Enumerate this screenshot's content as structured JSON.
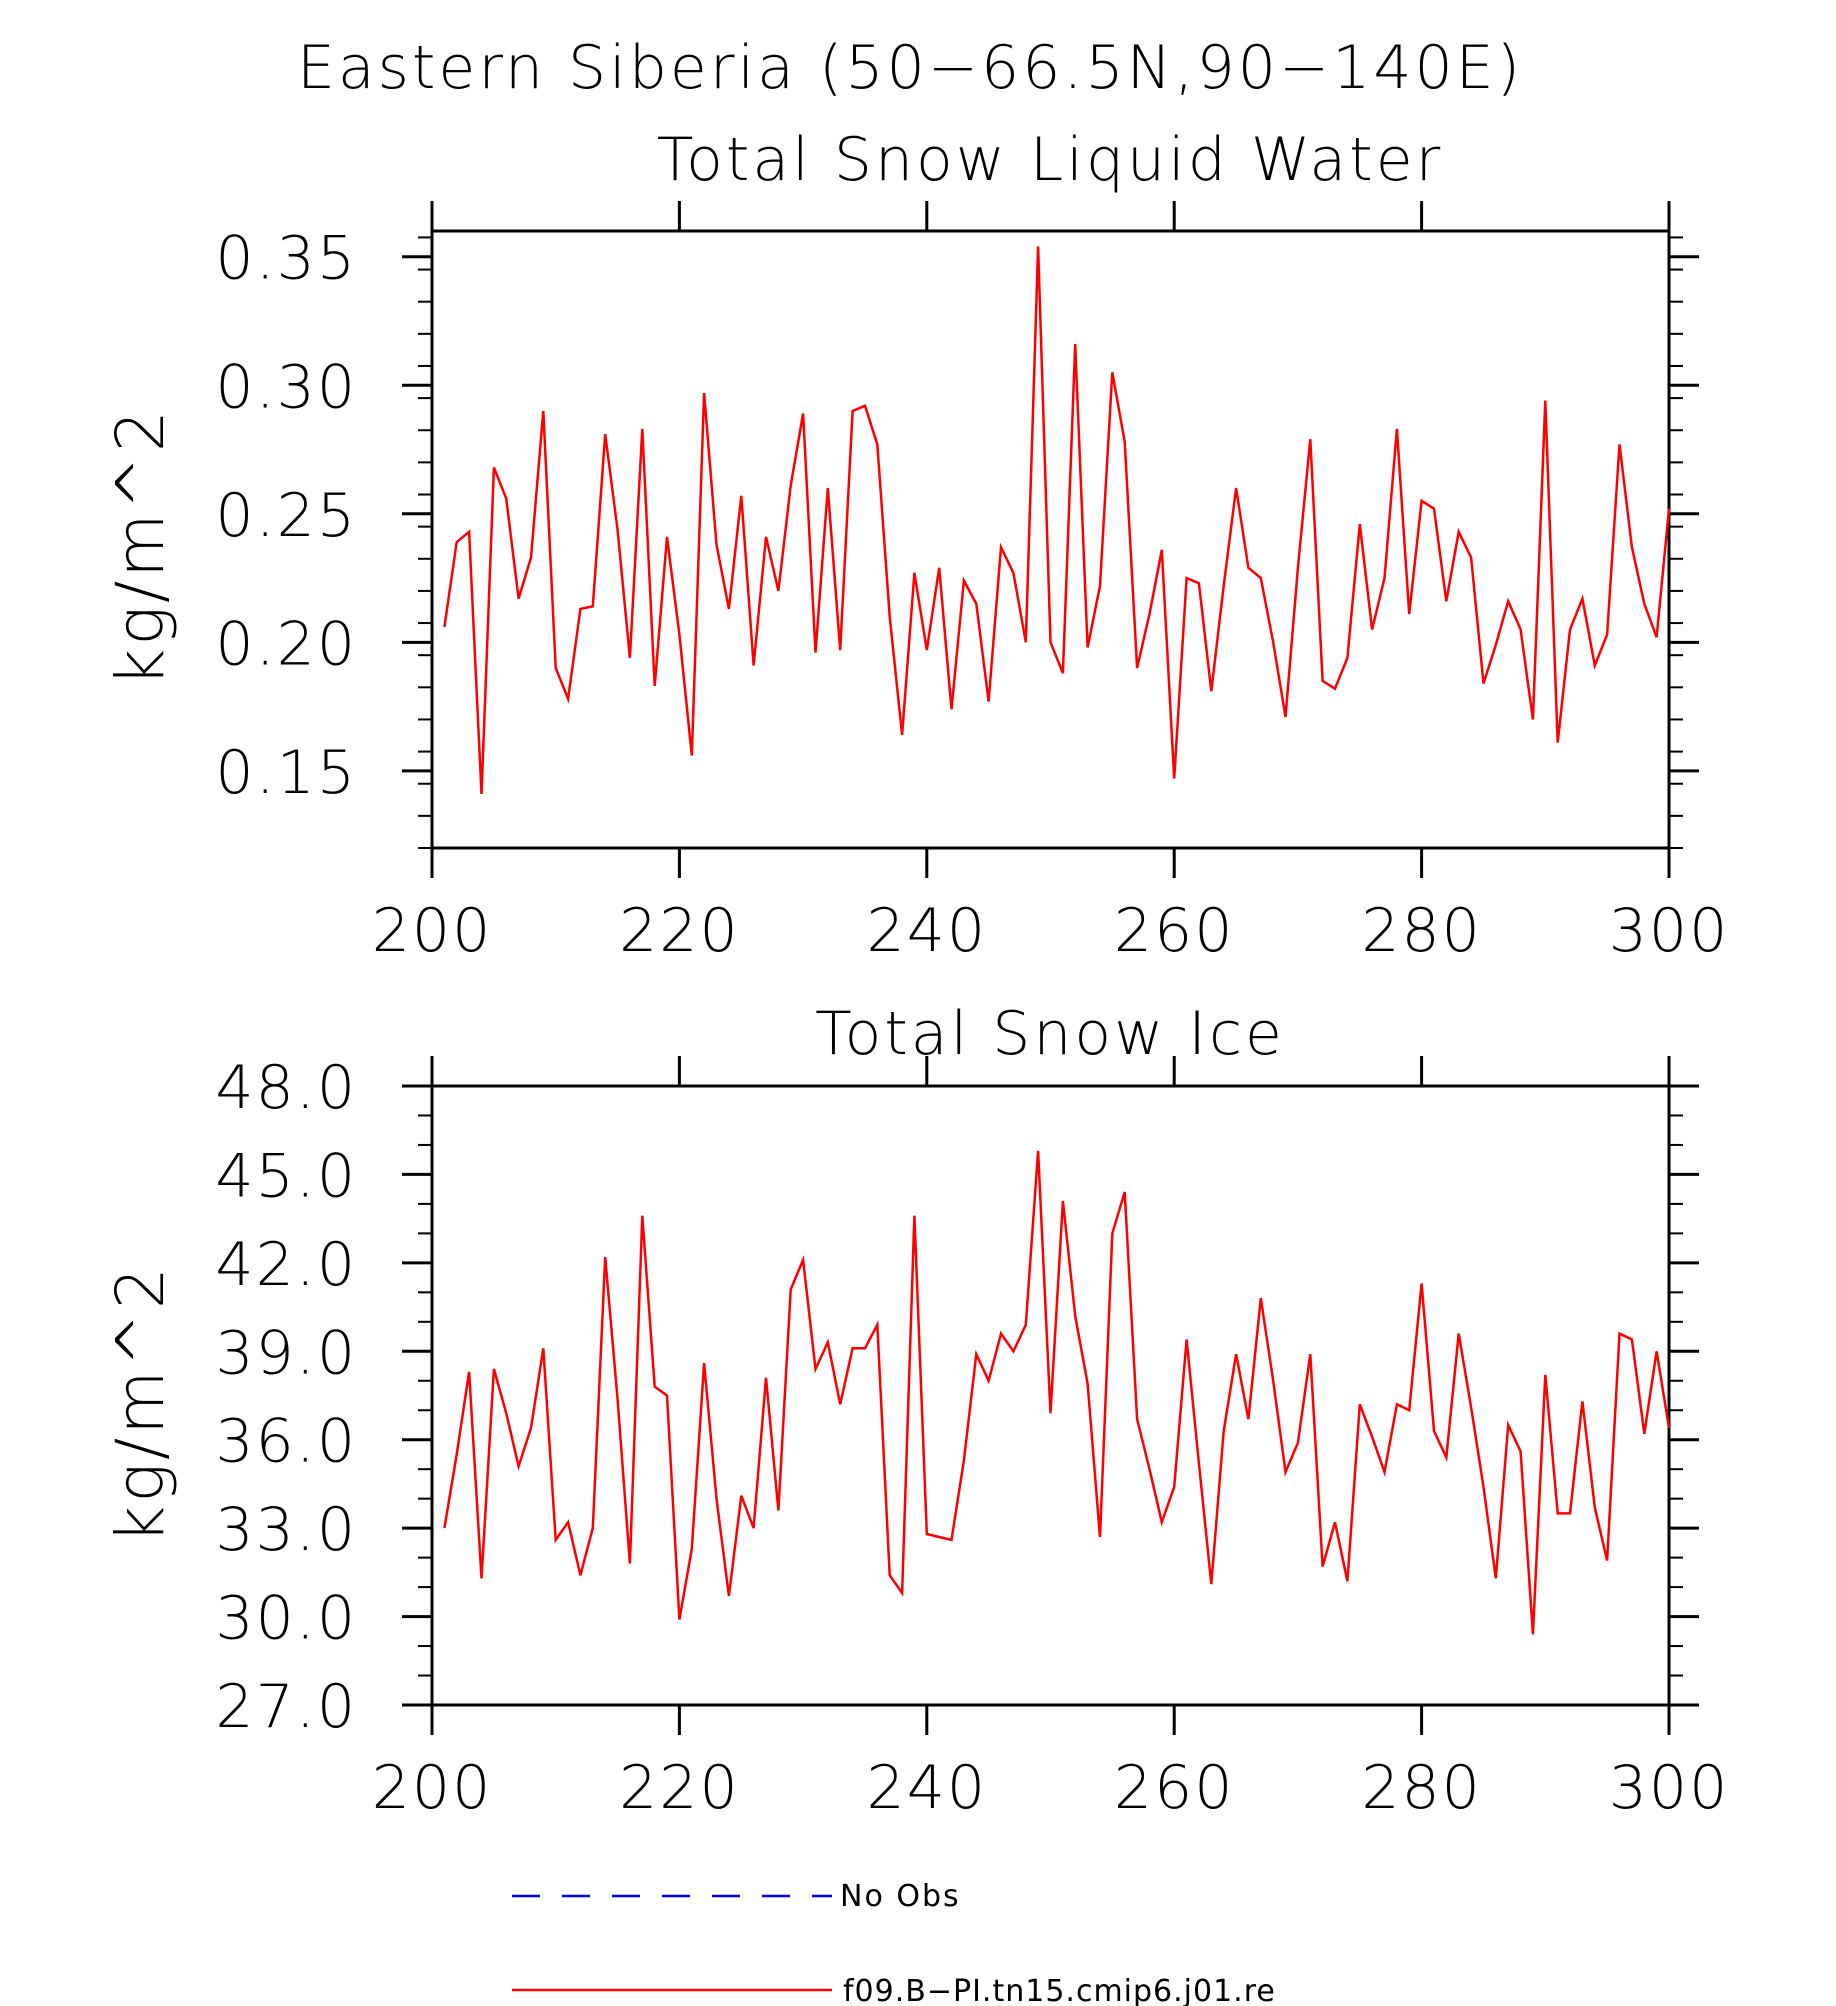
{
  "figure_title": "Eastern Siberia (50−66.5N,90−140E)",
  "colors": {
    "series": "#ff0000",
    "no_obs": "#0000ff",
    "axes": "#000000"
  },
  "chart_data": [
    {
      "type": "line",
      "title": "Total Snow Liquid Water",
      "xlabel": "",
      "ylabel": "kg/m^2",
      "xlim": [
        200,
        300
      ],
      "ylim": [
        0.12,
        0.36
      ],
      "xticks": [
        200,
        220,
        240,
        260,
        280,
        300
      ],
      "xtick_labels": [
        "200",
        "220",
        "240",
        "260",
        "280",
        "300"
      ],
      "yticks": [
        0.15,
        0.2,
        0.25,
        0.3,
        0.35
      ],
      "ytick_labels": [
        "0.15",
        "0.20",
        "0.25",
        "0.30",
        "0.35"
      ],
      "grid": false,
      "x": [
        201,
        202,
        203,
        204,
        205,
        206,
        207,
        208,
        209,
        210,
        211,
        212,
        213,
        214,
        215,
        216,
        217,
        218,
        219,
        220,
        221,
        222,
        223,
        224,
        225,
        226,
        227,
        228,
        229,
        230,
        231,
        232,
        233,
        234,
        235,
        236,
        237,
        238,
        239,
        240,
        241,
        242,
        243,
        244,
        245,
        246,
        247,
        248,
        249,
        250,
        251,
        252,
        253,
        254,
        255,
        256,
        257,
        258,
        259,
        260,
        261,
        262,
        263,
        264,
        265,
        266,
        267,
        268,
        269,
        270,
        271,
        272,
        273,
        274,
        275,
        276,
        277,
        278,
        279,
        280,
        281,
        282,
        283,
        284,
        285,
        286,
        287,
        288,
        289,
        290,
        291,
        292,
        293,
        294,
        295,
        296,
        297,
        298,
        299,
        300
      ],
      "series": [
        {
          "name": "f09.B−PI.tn15.cmip6.j01.re",
          "values": [
            0.206,
            0.239,
            0.243,
            0.141,
            0.268,
            0.256,
            0.217,
            0.233,
            0.29,
            0.19,
            0.178,
            0.213,
            0.214,
            0.281,
            0.244,
            0.194,
            0.283,
            0.183,
            0.241,
            0.203,
            0.156,
            0.297,
            0.238,
            0.213,
            0.257,
            0.191,
            0.241,
            0.22,
            0.261,
            0.289,
            0.196,
            0.26,
            0.197,
            0.29,
            0.292,
            0.277,
            0.21,
            0.164,
            0.227,
            0.197,
            0.229,
            0.174,
            0.224,
            0.215,
            0.177,
            0.237,
            0.227,
            0.2,
            0.354,
            0.2,
            0.188,
            0.316,
            0.198,
            0.222,
            0.305,
            0.278,
            0.19,
            0.211,
            0.236,
            0.147,
            0.225,
            0.223,
            0.181,
            0.222,
            0.26,
            0.229,
            0.225,
            0.2,
            0.171,
            0.229,
            0.279,
            0.185,
            0.182,
            0.194,
            0.246,
            0.205,
            0.225,
            0.283,
            0.211,
            0.255,
            0.252,
            0.216,
            0.243,
            0.233,
            0.184,
            0.199,
            0.216,
            0.205,
            0.17,
            0.294,
            0.161,
            0.205,
            0.217,
            0.191,
            0.203,
            0.277,
            0.237,
            0.215,
            0.202,
            0.252
          ]
        }
      ]
    },
    {
      "type": "line",
      "title": "Total Snow Ice",
      "xlabel": "",
      "ylabel": "kg/m^2",
      "xlim": [
        200,
        300
      ],
      "ylim": [
        27,
        48
      ],
      "xticks": [
        200,
        220,
        240,
        260,
        280,
        300
      ],
      "xtick_labels": [
        "200",
        "220",
        "240",
        "260",
        "280",
        "300"
      ],
      "yticks": [
        27,
        30,
        33,
        36,
        39,
        42,
        45,
        48
      ],
      "ytick_labels": [
        "27.0",
        "30.0",
        "33.0",
        "36.0",
        "39.0",
        "42.0",
        "45.0",
        "48.0"
      ],
      "grid": false,
      "x": [
        201,
        202,
        203,
        204,
        205,
        206,
        207,
        208,
        209,
        210,
        211,
        212,
        213,
        214,
        215,
        216,
        217,
        218,
        219,
        220,
        221,
        222,
        223,
        224,
        225,
        226,
        227,
        228,
        229,
        230,
        231,
        232,
        233,
        234,
        235,
        236,
        237,
        238,
        239,
        240,
        241,
        242,
        243,
        244,
        245,
        246,
        247,
        248,
        249,
        250,
        251,
        252,
        253,
        254,
        255,
        256,
        257,
        258,
        259,
        260,
        261,
        262,
        263,
        264,
        265,
        266,
        267,
        268,
        269,
        270,
        271,
        272,
        273,
        274,
        275,
        276,
        277,
        278,
        279,
        280,
        281,
        282,
        283,
        284,
        285,
        286,
        287,
        288,
        289,
        290,
        291,
        292,
        293,
        294,
        295,
        296,
        297,
        298,
        299,
        300
      ],
      "series": [
        {
          "name": "f09.B−PI.tn15.cmip6.j01.re",
          "values": [
            33.0,
            35.5,
            38.3,
            31.3,
            38.4,
            36.9,
            35.1,
            36.4,
            39.1,
            32.6,
            33.2,
            31.4,
            33.0,
            42.2,
            37.4,
            31.8,
            43.6,
            37.8,
            37.5,
            29.9,
            32.3,
            38.6,
            34.0,
            30.7,
            34.1,
            33.0,
            38.1,
            33.6,
            41.1,
            42.1,
            38.4,
            39.3,
            37.2,
            39.1,
            39.1,
            39.9,
            31.4,
            30.8,
            43.6,
            32.8,
            32.7,
            32.6,
            35.3,
            38.9,
            38.0,
            39.6,
            39.0,
            39.9,
            45.8,
            36.9,
            44.1,
            40.2,
            37.9,
            32.7,
            43.0,
            44.4,
            36.7,
            35.0,
            33.2,
            34.4,
            39.4,
            35.2,
            31.1,
            36.3,
            38.9,
            36.7,
            40.8,
            38.0,
            34.9,
            35.9,
            38.9,
            31.7,
            33.2,
            31.2,
            37.2,
            36.1,
            34.9,
            37.2,
            37.0,
            41.3,
            36.3,
            35.4,
            39.6,
            37.1,
            34.4,
            31.3,
            36.5,
            35.6,
            29.4,
            38.2,
            33.5,
            33.5,
            37.3,
            33.7,
            31.9,
            39.6,
            39.4,
            36.2,
            39.0,
            36.4
          ]
        }
      ]
    }
  ],
  "legend": [
    {
      "label": "No Obs",
      "style": "dashed",
      "color": "#0000ff"
    },
    {
      "label": "f09.B−PI.tn15.cmip6.j01.re",
      "style": "solid",
      "color": "#ff0000"
    }
  ]
}
